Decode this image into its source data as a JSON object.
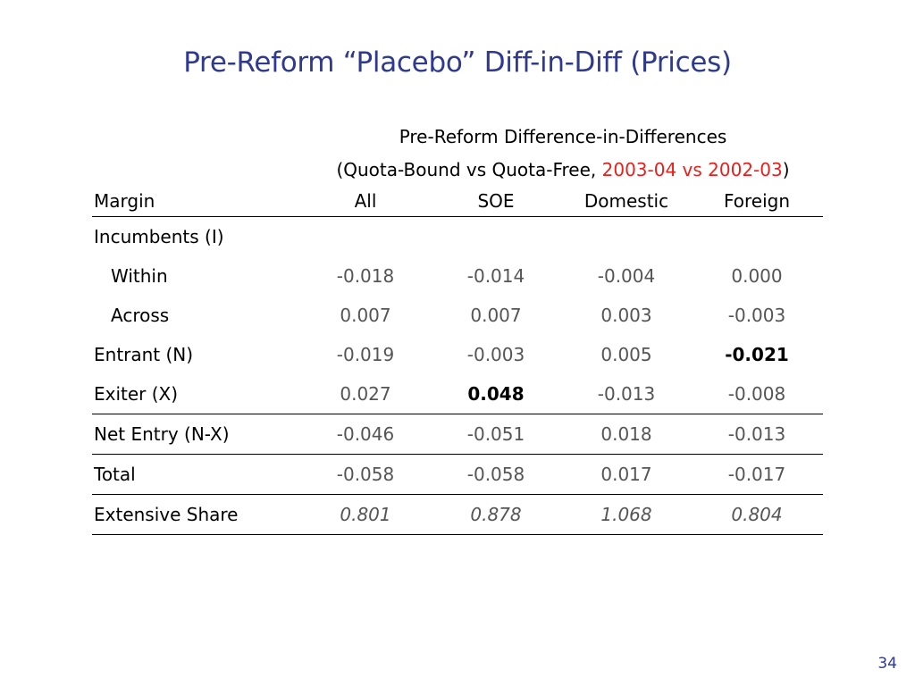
{
  "title": "Pre-Reform “Placebo” Diff-in-Diff (Prices)",
  "header": {
    "line1": "Pre-Reform Difference-in-Differences",
    "line2_prefix": "(Quota-Bound vs Quota-Free, ",
    "line2_highlight": "2003-04 vs 2002-03",
    "line2_suffix": ")"
  },
  "columns": {
    "label": "Margin",
    "all": "All",
    "soe": "SOE",
    "domestic": "Domestic",
    "foreign": "Foreign"
  },
  "rows": [
    {
      "label": "Incumbents (I)",
      "values": [
        "",
        "",
        "",
        ""
      ]
    },
    {
      "label": "Within",
      "values": [
        "-0.018",
        "-0.014",
        "-0.004",
        "0.000"
      ]
    },
    {
      "label": "Across",
      "values": [
        "0.007",
        "0.007",
        "0.003",
        "-0.003"
      ]
    },
    {
      "label": "Entrant (N)",
      "values": [
        "-0.019",
        "-0.003",
        "0.005",
        "-0.021"
      ]
    },
    {
      "label": "Exiter (X)",
      "values": [
        "0.027",
        "0.048",
        "-0.013",
        "-0.008"
      ]
    },
    {
      "label": "Net Entry (N-X)",
      "values": [
        "-0.046",
        "-0.051",
        "0.018",
        "-0.013"
      ]
    },
    {
      "label": "Total",
      "values": [
        "-0.058",
        "-0.058",
        "0.017",
        "-0.017"
      ]
    },
    {
      "label": "Extensive Share",
      "values": [
        "0.801",
        "0.878",
        "1.068",
        "0.804"
      ]
    }
  ],
  "page_number": "34"
}
